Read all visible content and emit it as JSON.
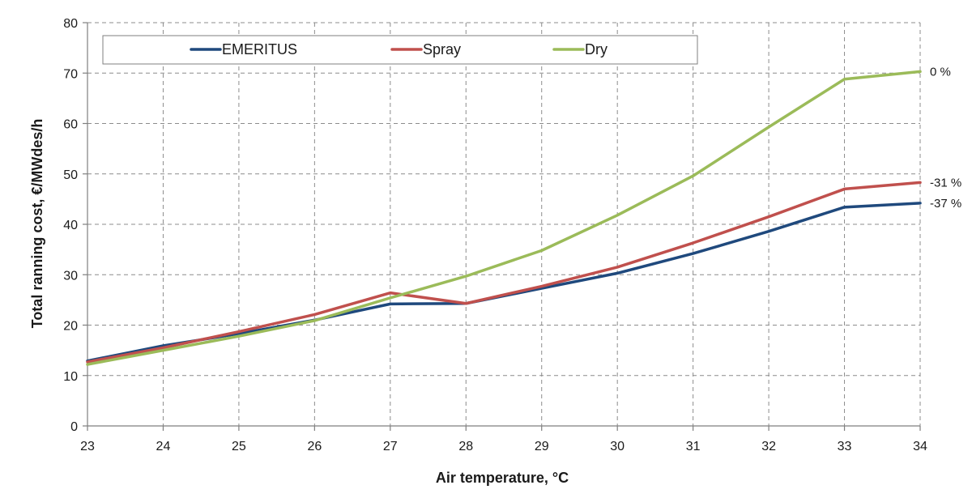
{
  "chart_data": {
    "type": "line",
    "title": "",
    "xlabel": "Air temperature, °C",
    "ylabel": "Total ranning cost, €/MWdes/h",
    "xlim": [
      23,
      34
    ],
    "ylim": [
      0,
      80
    ],
    "x_ticks": [
      23,
      24,
      25,
      26,
      27,
      28,
      29,
      30,
      31,
      32,
      33,
      34
    ],
    "y_ticks": [
      0,
      10,
      20,
      30,
      40,
      50,
      60,
      70,
      80
    ],
    "grid": true,
    "legend_position": "top",
    "x": [
      23,
      24,
      25,
      26,
      27,
      28,
      29,
      30,
      31,
      32,
      33,
      34
    ],
    "series": [
      {
        "name": "EMERITUS",
        "color": "#1f497d",
        "values": [
          12.9,
          15.9,
          18.3,
          21.0,
          24.2,
          24.3,
          27.3,
          30.3,
          34.2,
          38.6,
          43.4,
          44.2
        ]
      },
      {
        "name": "Spray",
        "color": "#c0504d",
        "values": [
          12.7,
          15.5,
          18.7,
          22.1,
          26.4,
          24.3,
          27.7,
          31.5,
          36.3,
          41.5,
          47.0,
          48.3
        ]
      },
      {
        "name": "Dry",
        "color": "#9bbb59",
        "values": [
          12.2,
          15.0,
          17.8,
          20.9,
          25.4,
          29.7,
          34.8,
          41.8,
          49.6,
          59.3,
          68.8,
          70.3
        ]
      }
    ],
    "annotations": [
      {
        "text": "0 %",
        "series": "Dry"
      },
      {
        "text": "-31 %",
        "series": "Spray"
      },
      {
        "text": "-37 %",
        "series": "EMERITUS"
      }
    ]
  }
}
